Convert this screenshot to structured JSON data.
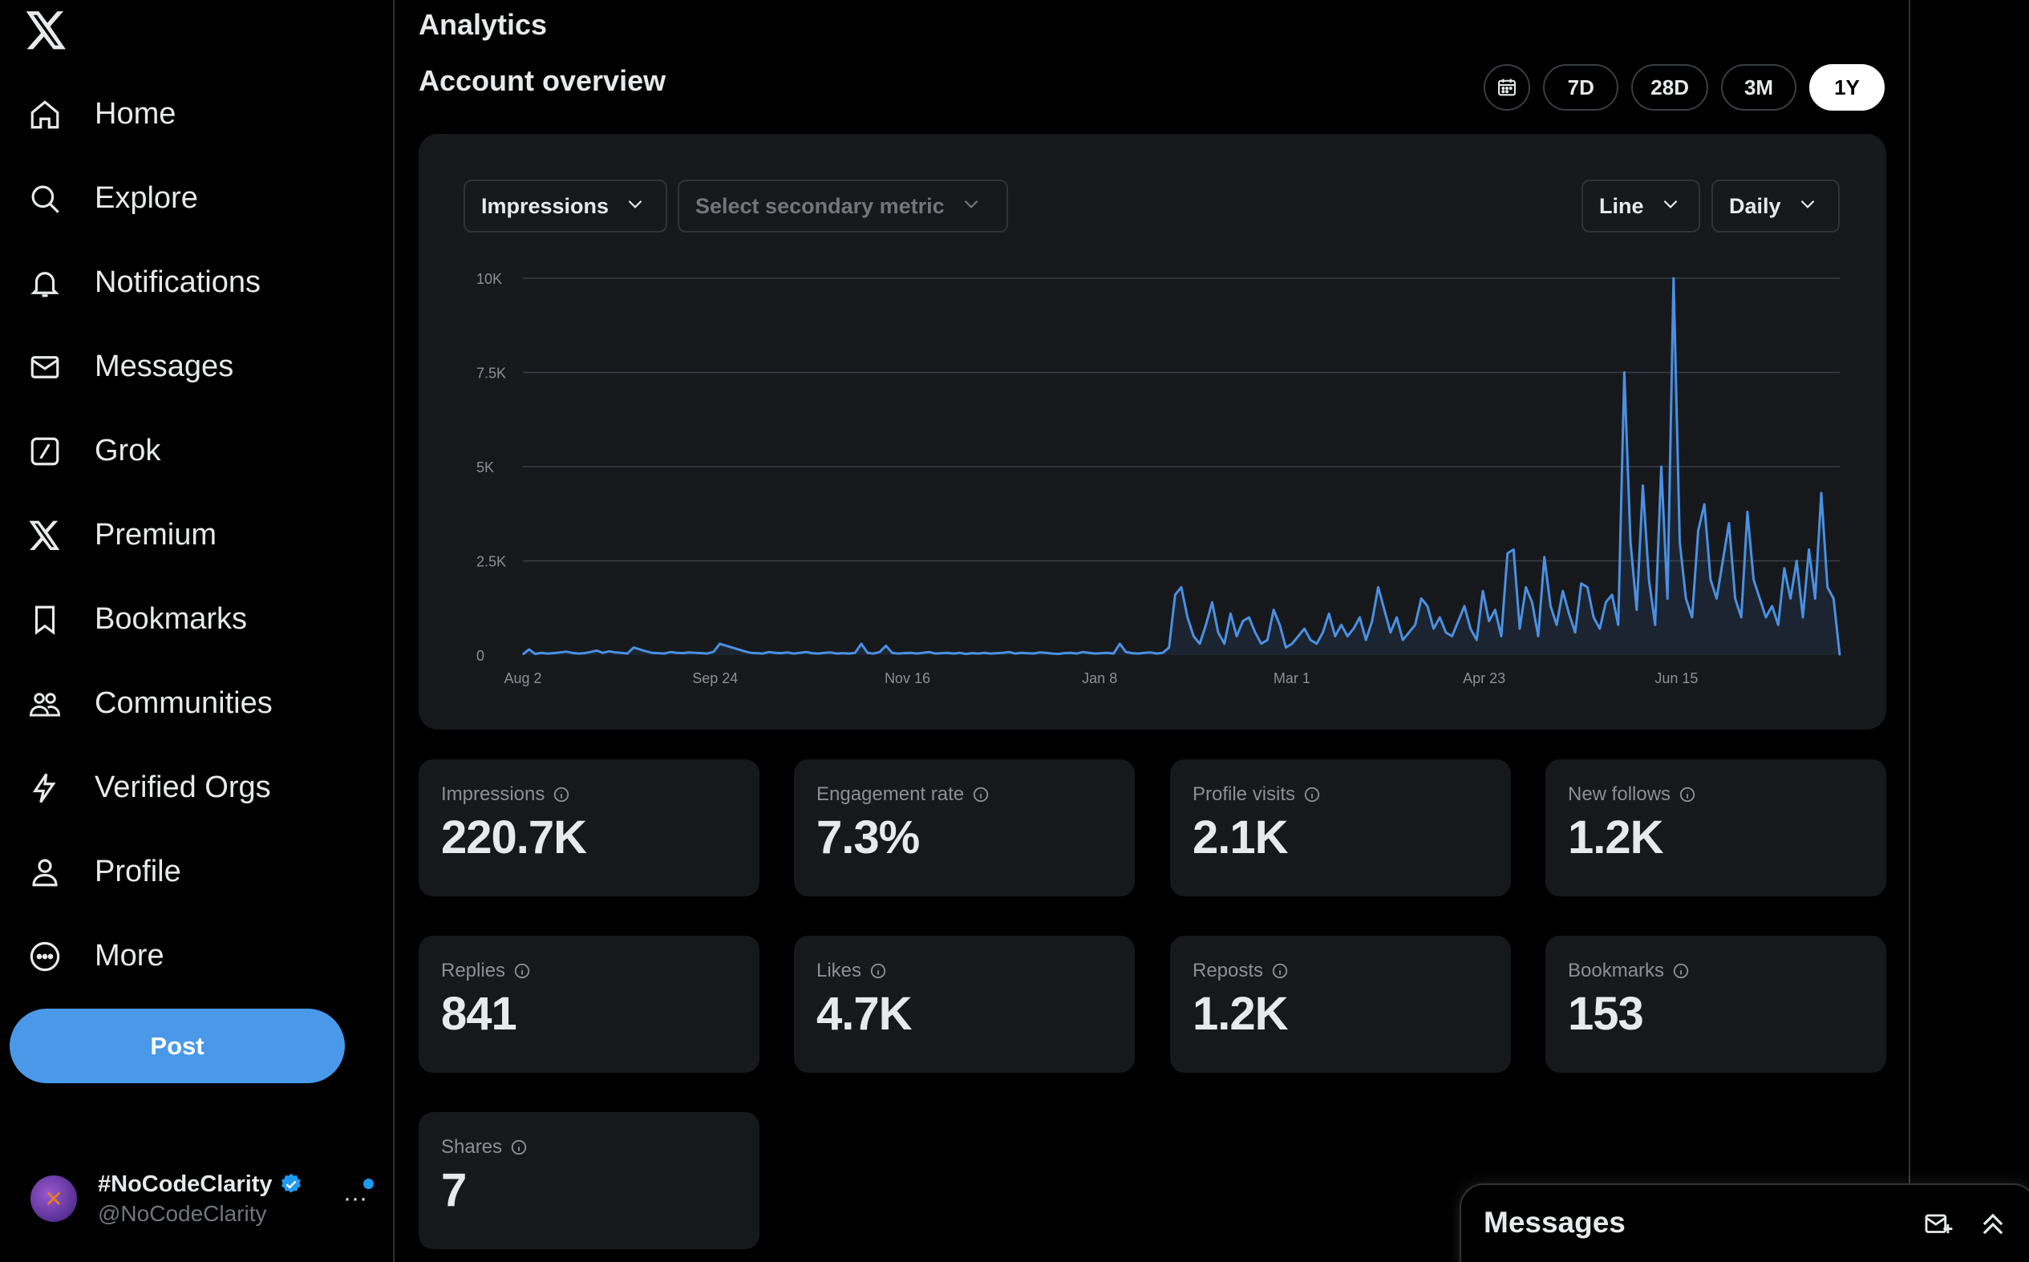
{
  "nav": {
    "logo": "x-logo-icon",
    "items": [
      {
        "label": "Home",
        "icon": "home-icon"
      },
      {
        "label": "Explore",
        "icon": "search-icon"
      },
      {
        "label": "Notifications",
        "icon": "bell-icon"
      },
      {
        "label": "Messages",
        "icon": "envelope-icon"
      },
      {
        "label": "Grok",
        "icon": "grok-icon"
      },
      {
        "label": "Premium",
        "icon": "x-icon"
      },
      {
        "label": "Bookmarks",
        "icon": "bookmark-icon"
      },
      {
        "label": "Communities",
        "icon": "people-icon"
      },
      {
        "label": "Verified Orgs",
        "icon": "lightning-icon"
      },
      {
        "label": "Profile",
        "icon": "person-icon"
      },
      {
        "label": "More",
        "icon": "more-circle-icon"
      }
    ],
    "post_label": "Post"
  },
  "account": {
    "name": "#NoCodeClarity",
    "handle": "@NoCodeClarity",
    "more": "···"
  },
  "page": {
    "title": "Analytics",
    "section": "Account overview"
  },
  "ranges": {
    "items": [
      "7D",
      "28D",
      "3M",
      "1Y"
    ],
    "active": "1Y"
  },
  "chart_controls": {
    "primary_metric": "Impressions",
    "secondary_placeholder": "Select secondary metric",
    "chart_type": "Line",
    "granularity": "Daily"
  },
  "metrics": [
    {
      "label": "Impressions",
      "value": "220.7K"
    },
    {
      "label": "Engagement rate",
      "value": "7.3%"
    },
    {
      "label": "Profile visits",
      "value": "2.1K"
    },
    {
      "label": "New follows",
      "value": "1.2K"
    },
    {
      "label": "Replies",
      "value": "841"
    },
    {
      "label": "Likes",
      "value": "4.7K"
    },
    {
      "label": "Reposts",
      "value": "1.2K"
    },
    {
      "label": "Bookmarks",
      "value": "153"
    },
    {
      "label": "Shares",
      "value": "7"
    }
  ],
  "messages_drawer": {
    "title": "Messages"
  },
  "colors": {
    "accent": "#4a99e9",
    "line": "#4a90e2",
    "verified": "#1d9bf0"
  },
  "chart_data": {
    "type": "line",
    "title": "",
    "xlabel": "",
    "ylabel": "",
    "ylim": [
      0,
      10000
    ],
    "y_ticks": [
      "0",
      "2.5K",
      "5K",
      "7.5K",
      "10K"
    ],
    "x_ticks": [
      "Aug 2",
      "Sep 24",
      "Nov 16",
      "Jan 8",
      "Mar 1",
      "Apr 23",
      "Jun 15"
    ],
    "grid": true,
    "series": [
      {
        "values": [
          20,
          150,
          30,
          60,
          40,
          50,
          70,
          90,
          60,
          40,
          50,
          80,
          120,
          60,
          100,
          70,
          60,
          40,
          200,
          150,
          100,
          60,
          50,
          40,
          80,
          60,
          50,
          70,
          60,
          50,
          40,
          90,
          300,
          250,
          200,
          150,
          100,
          60,
          50,
          40,
          80,
          60,
          50,
          70,
          40,
          60,
          80,
          50,
          40,
          60,
          70,
          40,
          50,
          40,
          60,
          300,
          60,
          40,
          80,
          250,
          60,
          40,
          50,
          60,
          40,
          60,
          80,
          40,
          50,
          60,
          40,
          60,
          30,
          50,
          40,
          60,
          40,
          50,
          60,
          80,
          40,
          60,
          50,
          40,
          70,
          60,
          40,
          30,
          50,
          60,
          40,
          80,
          60,
          40,
          50,
          60,
          40,
          300,
          80,
          50,
          40,
          60,
          70,
          40,
          60,
          200,
          1600,
          1800,
          1000,
          500,
          300,
          800,
          1400,
          600,
          300,
          1100,
          500,
          900,
          1000,
          600,
          300,
          400,
          1200,
          800,
          200,
          300,
          500,
          700,
          400,
          300,
          600,
          1100,
          500,
          800,
          500,
          700,
          1000,
          400,
          900,
          1800,
          1200,
          600,
          1000,
          400,
          600,
          800,
          1500,
          1300,
          700,
          1000,
          600,
          500,
          900,
          1300,
          700,
          400,
          1700,
          900,
          1200,
          500,
          2700,
          2800,
          700,
          1800,
          1400,
          500,
          2600,
          1300,
          800,
          1700,
          1100,
          600,
          1900,
          1800,
          1000,
          700,
          1400,
          1600,
          800,
          7500,
          3000,
          1200,
          4500,
          2000,
          800,
          5000,
          1500,
          10000,
          3000,
          1500,
          1000,
          3300,
          4000,
          2000,
          1500,
          2500,
          3500,
          1500,
          1000,
          3800,
          2000,
          1500,
          1000,
          1300,
          800,
          2300,
          1500,
          2500,
          1000,
          2800,
          1500,
          4300,
          1800,
          1500,
          0
        ]
      }
    ]
  }
}
